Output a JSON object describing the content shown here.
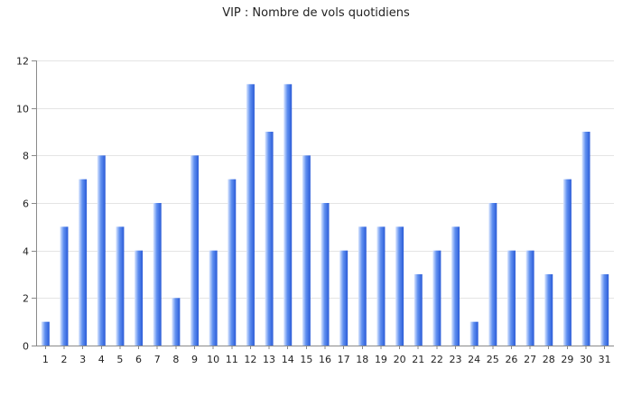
{
  "chart_data": {
    "type": "bar",
    "title": "VIP : Nombre de vols quotidiens",
    "xlabel": "",
    "ylabel": "",
    "categories": [
      "1",
      "2",
      "3",
      "4",
      "5",
      "6",
      "7",
      "8",
      "9",
      "10",
      "11",
      "12",
      "13",
      "14",
      "15",
      "16",
      "17",
      "18",
      "19",
      "20",
      "21",
      "22",
      "23",
      "24",
      "25",
      "26",
      "27",
      "28",
      "29",
      "30",
      "31"
    ],
    "values": [
      1,
      5,
      7,
      8,
      5,
      4,
      6,
      2,
      8,
      4,
      7,
      11,
      9,
      11,
      8,
      6,
      4,
      5,
      5,
      5,
      3,
      4,
      5,
      1,
      6,
      4,
      4,
      3,
      7,
      9,
      3
    ],
    "ylim": [
      0,
      12
    ],
    "yticks": [
      0,
      2,
      4,
      6,
      8,
      10,
      12
    ],
    "grid": true,
    "legend": "none",
    "colors": {
      "bar_dark": "#2a5bd7",
      "bar_mid": "#5f8ff0",
      "bar_light": "#dbe7ff",
      "axis": "#8a8a8a",
      "grid": "#e4e4e4",
      "text": "#222222"
    }
  }
}
